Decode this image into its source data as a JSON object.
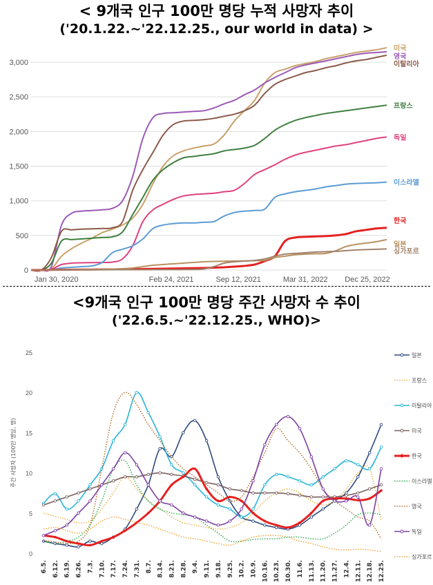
{
  "titles": {
    "top_line1": "< 9개국 인구 100만 명당 누적 사망자 추이",
    "top_line2": "('20.1.22.~'22.12.25., our world in data) >",
    "bottom_line1": "<9개국 인구 100만 명당 주간 사망자 수 추이",
    "bottom_line2": "('22.6.5.~'22.12.25., WHO)>"
  },
  "chart_data": [
    {
      "type": "line",
      "title": "9개국 인구 100만 명당 누적 사망자 추이 ('20.1.22.~'22.12.25., our world in data)",
      "xlabel": "",
      "ylabel": "",
      "x_ticks": [
        "Jan 30, 2020",
        "Feb 24, 2021",
        "Sep 12, 2021",
        "Mar 31, 2022",
        "Dec 25, 2022"
      ],
      "x_range": [
        0,
        35
      ],
      "x_axis_note": "x values are months since Jan 2020",
      "y_ticks": [
        "0",
        "500",
        "1,000",
        "1,500",
        "2,000",
        "2,500",
        "3,000"
      ],
      "ylim": [
        0,
        3200
      ],
      "grid": true,
      "series": [
        {
          "name": "미국",
          "color": "#c8a06a",
          "x": [
            0,
            1,
            2,
            3,
            4,
            5,
            6,
            7,
            8,
            9,
            10,
            11,
            12,
            13,
            14,
            15,
            16,
            17,
            18,
            19,
            20,
            21,
            22,
            23,
            24,
            25,
            26,
            27,
            28,
            29,
            30,
            31,
            32,
            33,
            34,
            35
          ],
          "values": [
            0,
            0,
            20,
            200,
            310,
            390,
            460,
            540,
            590,
            650,
            750,
            950,
            1250,
            1500,
            1650,
            1720,
            1760,
            1790,
            1820,
            1950,
            2150,
            2300,
            2450,
            2700,
            2850,
            2900,
            2950,
            2980,
            3010,
            3050,
            3080,
            3110,
            3140,
            3160,
            3180,
            3210
          ]
        },
        {
          "name": "영국",
          "color": "#9b59b6",
          "x": [
            0,
            1,
            2,
            3,
            4,
            5,
            6,
            7,
            8,
            9,
            10,
            11,
            12,
            13,
            14,
            15,
            16,
            17,
            18,
            19,
            20,
            21,
            22,
            23,
            24,
            25,
            26,
            27,
            28,
            29,
            30,
            31,
            32,
            33,
            34,
            35
          ],
          "values": [
            0,
            0,
            50,
            650,
            820,
            850,
            860,
            870,
            890,
            1000,
            1350,
            1900,
            2200,
            2260,
            2270,
            2280,
            2290,
            2300,
            2340,
            2400,
            2450,
            2530,
            2600,
            2700,
            2780,
            2850,
            2920,
            2960,
            2990,
            3020,
            3050,
            3080,
            3110,
            3130,
            3140,
            3150
          ]
        },
        {
          "name": "이탈리아",
          "color": "#8b5a4a",
          "x": [
            0,
            1,
            2,
            3,
            4,
            5,
            6,
            7,
            8,
            9,
            10,
            11,
            12,
            13,
            14,
            15,
            16,
            17,
            18,
            19,
            20,
            21,
            22,
            23,
            24,
            25,
            26,
            27,
            28,
            29,
            30,
            31,
            32,
            33,
            34,
            35
          ],
          "values": [
            0,
            0,
            180,
            560,
            580,
            590,
            595,
            600,
            610,
            700,
            1150,
            1450,
            1700,
            1950,
            2100,
            2150,
            2160,
            2170,
            2190,
            2220,
            2250,
            2300,
            2380,
            2550,
            2680,
            2750,
            2800,
            2850,
            2880,
            2920,
            2950,
            2990,
            3020,
            3040,
            3070,
            3100
          ]
        },
        {
          "name": "프랑스",
          "color": "#3f7f3f",
          "x": [
            0,
            1,
            2,
            3,
            4,
            5,
            6,
            7,
            8,
            9,
            10,
            11,
            12,
            13,
            14,
            15,
            16,
            17,
            18,
            19,
            20,
            21,
            22,
            23,
            24,
            25,
            26,
            27,
            28,
            29,
            30,
            31,
            32,
            33,
            34,
            35
          ],
          "values": [
            0,
            0,
            100,
            420,
            440,
            450,
            460,
            470,
            480,
            550,
            800,
            1050,
            1300,
            1450,
            1550,
            1620,
            1640,
            1660,
            1680,
            1720,
            1740,
            1760,
            1800,
            1900,
            2020,
            2100,
            2160,
            2200,
            2230,
            2260,
            2280,
            2300,
            2320,
            2340,
            2360,
            2380
          ]
        },
        {
          "name": "독일",
          "color": "#e0407f",
          "x": [
            0,
            1,
            2,
            3,
            4,
            5,
            6,
            7,
            8,
            9,
            10,
            11,
            12,
            13,
            14,
            15,
            16,
            17,
            18,
            19,
            20,
            21,
            22,
            23,
            24,
            25,
            26,
            27,
            28,
            29,
            30,
            31,
            32,
            33,
            34,
            35
          ],
          "values": [
            0,
            0,
            10,
            80,
            100,
            105,
            108,
            110,
            115,
            160,
            350,
            700,
            870,
            950,
            1020,
            1070,
            1090,
            1100,
            1110,
            1130,
            1150,
            1250,
            1380,
            1450,
            1520,
            1600,
            1660,
            1700,
            1730,
            1760,
            1790,
            1810,
            1840,
            1870,
            1900,
            1920
          ]
        },
        {
          "name": "이스라엘",
          "color": "#5b9bd5",
          "x": [
            0,
            1,
            2,
            3,
            4,
            5,
            6,
            7,
            8,
            9,
            10,
            11,
            12,
            13,
            14,
            15,
            16,
            17,
            18,
            19,
            20,
            21,
            22,
            23,
            24,
            25,
            26,
            27,
            28,
            29,
            30,
            31,
            32,
            33,
            34,
            35
          ],
          "values": [
            0,
            0,
            5,
            30,
            40,
            50,
            60,
            110,
            250,
            300,
            350,
            450,
            600,
            650,
            670,
            680,
            680,
            690,
            700,
            780,
            830,
            850,
            860,
            880,
            1050,
            1100,
            1130,
            1150,
            1170,
            1200,
            1220,
            1240,
            1250,
            1255,
            1260,
            1270
          ]
        },
        {
          "name": "한국",
          "color": "#e52020",
          "x": [
            0,
            1,
            2,
            3,
            4,
            5,
            6,
            7,
            8,
            9,
            10,
            11,
            12,
            13,
            14,
            15,
            16,
            17,
            18,
            19,
            20,
            21,
            22,
            23,
            24,
            25,
            26,
            27,
            28,
            29,
            30,
            31,
            32,
            33,
            34,
            35
          ],
          "values": [
            0,
            0,
            2,
            5,
            6,
            7,
            8,
            9,
            10,
            11,
            12,
            15,
            18,
            20,
            22,
            25,
            27,
            30,
            35,
            40,
            50,
            60,
            80,
            130,
            200,
            420,
            470,
            480,
            485,
            490,
            500,
            520,
            560,
            580,
            600,
            610
          ]
        },
        {
          "name": "일본",
          "color": "#b89060",
          "x": [
            0,
            1,
            2,
            3,
            4,
            5,
            6,
            7,
            8,
            9,
            10,
            11,
            12,
            13,
            14,
            15,
            16,
            17,
            18,
            19,
            20,
            21,
            22,
            23,
            24,
            25,
            26,
            27,
            28,
            29,
            30,
            31,
            32,
            33,
            34,
            35
          ],
          "values": [
            0,
            0,
            0,
            5,
            8,
            9,
            10,
            12,
            15,
            20,
            30,
            50,
            70,
            80,
            90,
            100,
            110,
            120,
            125,
            128,
            130,
            132,
            135,
            140,
            180,
            200,
            220,
            230,
            235,
            240,
            280,
            340,
            370,
            390,
            410,
            440
          ]
        },
        {
          "name": "싱가포르",
          "color": "#a0826a",
          "x": [
            0,
            1,
            2,
            3,
            4,
            5,
            6,
            7,
            8,
            9,
            10,
            11,
            12,
            13,
            14,
            15,
            16,
            17,
            18,
            19,
            20,
            21,
            22,
            23,
            24,
            25,
            26,
            27,
            28,
            29,
            30,
            31,
            32,
            33,
            34,
            35
          ],
          "values": [
            0,
            0,
            1,
            3,
            4,
            5,
            5,
            5,
            5,
            5,
            5,
            5,
            6,
            6,
            6,
            7,
            8,
            15,
            50,
            100,
            120,
            130,
            140,
            160,
            200,
            230,
            240,
            250,
            260,
            265,
            270,
            280,
            290,
            295,
            300,
            305
          ]
        }
      ]
    },
    {
      "type": "line",
      "title": "9개국 인구 100만 명당 주간 사망자 수 추이 ('22.6.5.~'22.12.25., WHO)",
      "xlabel": "",
      "ylabel": "주간 사망자 (100만 명당, 명)",
      "categories": [
        "6.5.",
        "6.12.",
        "6.19.",
        "6.26.",
        "7.3.",
        "7.10.",
        "7.17.",
        "7.24.",
        "7.31.",
        "8.7.",
        "8.14.",
        "8.21.",
        "8.28.",
        "9.4.",
        "9.11.",
        "9.18.",
        "9.25.",
        "10.2.",
        "10.9.",
        "10.16.",
        "10.23.",
        "10.30.",
        "11.6.",
        "11.13.",
        "11.20.",
        "11.27.",
        "12.4.",
        "12.11.",
        "12.18.",
        "12.25."
      ],
      "y_ticks": [
        "0",
        "5",
        "10",
        "15",
        "20",
        "25"
      ],
      "ylim": [
        0,
        25
      ],
      "grid": false,
      "series": [
        {
          "name": "일본",
          "color": "#2e4a7d",
          "style": "solid-markers",
          "values": [
            1.5,
            1.2,
            1.0,
            0.8,
            1.5,
            1.2,
            2.0,
            3.0,
            5.5,
            8.5,
            13.0,
            12.0,
            15.0,
            16.5,
            14.0,
            9.5,
            6.5,
            4.5,
            4.0,
            3.5,
            3.2,
            3.0,
            3.5,
            4.5,
            5.5,
            6.5,
            7.5,
            9.5,
            12.5,
            16.0
          ]
        },
        {
          "name": "프랑스",
          "color": "#e8b040",
          "style": "dotted",
          "values": [
            5.0,
            4.6,
            4.2,
            3.8,
            4.0,
            5.5,
            7.5,
            9.5,
            8.0,
            6.5,
            5.5,
            4.5,
            3.8,
            3.5,
            3.2,
            3.0,
            3.2,
            3.8,
            5.0,
            6.5,
            7.5,
            8.0,
            7.5,
            6.5,
            6.0,
            6.5,
            8.0,
            10.0,
            10.5,
            4.0
          ]
        },
        {
          "name": "이탈리아",
          "color": "#27b5d8",
          "style": "solid-markers",
          "values": [
            6.2,
            7.4,
            5.5,
            6.5,
            8.5,
            10.5,
            14.0,
            16.0,
            20.0,
            17.5,
            14.5,
            11.0,
            10.0,
            8.5,
            7.0,
            6.0,
            5.5,
            4.5,
            5.5,
            8.5,
            9.8,
            9.5,
            9.0,
            8.5,
            9.5,
            10.5,
            11.5,
            11.0,
            10.5,
            13.2
          ]
        },
        {
          "name": "미국",
          "color": "#7a6060",
          "style": "solid-markers",
          "values": [
            6.0,
            6.5,
            7.0,
            7.5,
            8.0,
            8.5,
            9.0,
            9.5,
            9.5,
            9.8,
            10.0,
            9.8,
            9.6,
            9.2,
            8.8,
            8.5,
            8.0,
            7.8,
            7.5,
            7.5,
            7.5,
            7.4,
            7.2,
            7.0,
            7.0,
            7.0,
            7.2,
            7.5,
            8.0,
            8.5
          ]
        },
        {
          "name": "한국",
          "color": "#e52020",
          "style": "thick",
          "values": [
            2.2,
            2.0,
            1.5,
            1.2,
            1.0,
            1.5,
            2.0,
            2.8,
            3.8,
            5.0,
            6.5,
            8.5,
            9.5,
            10.5,
            8.0,
            6.5,
            7.0,
            6.5,
            5.0,
            4.0,
            3.5,
            3.2,
            3.8,
            5.0,
            6.5,
            6.8,
            6.8,
            6.6,
            6.8,
            7.8
          ]
        },
        {
          "name": "이스라엘",
          "color": "#2aa84a",
          "style": "dotted",
          "values": [
            1.5,
            1.2,
            1.5,
            2.0,
            3.5,
            6.5,
            10.5,
            11.5,
            8.5,
            6.5,
            5.5,
            5.0,
            4.8,
            4.5,
            3.5,
            2.5,
            1.5,
            1.5,
            1.7,
            1.8,
            1.8,
            2.0,
            2.0,
            1.8,
            1.8,
            2.5,
            3.5,
            4.8,
            5.0,
            4.8
          ]
        },
        {
          "name": "영국",
          "color": "#b06820",
          "style": "dotted",
          "values": [
            1.6,
            1.4,
            1.2,
            1.5,
            3.5,
            10.5,
            17.5,
            20.0,
            18.5,
            16.0,
            14.0,
            12.0,
            10.5,
            9.5,
            8.5,
            7.5,
            6.5,
            7.0,
            9.5,
            12.5,
            15.5,
            14.0,
            12.5,
            10.5,
            8.0,
            6.5,
            5.5,
            4.5,
            4.0,
            1.8
          ]
        },
        {
          "name": "독일",
          "color": "#7b3fa0",
          "style": "solid-markers",
          "values": [
            2.2,
            2.8,
            3.5,
            5.0,
            6.5,
            8.5,
            10.5,
            12.5,
            11.0,
            8.5,
            6.5,
            6.0,
            5.0,
            4.5,
            4.0,
            3.5,
            4.0,
            5.5,
            9.0,
            13.5,
            16.0,
            17.0,
            15.5,
            12.0,
            8.0,
            6.5,
            6.5,
            7.0,
            3.5,
            10.5
          ]
        },
        {
          "name": "싱가포르",
          "color": "#f0a030",
          "style": "dotted",
          "values": [
            3.0,
            3.2,
            2.8,
            2.5,
            3.0,
            4.0,
            4.5,
            4.2,
            3.8,
            3.5,
            3.0,
            2.5,
            2.0,
            1.8,
            1.5,
            1.2,
            1.0,
            1.5,
            2.0,
            2.2,
            2.2,
            2.0,
            1.5,
            1.2,
            0.8,
            0.5,
            0.4,
            0.5,
            0.4,
            0.2
          ]
        }
      ]
    }
  ]
}
